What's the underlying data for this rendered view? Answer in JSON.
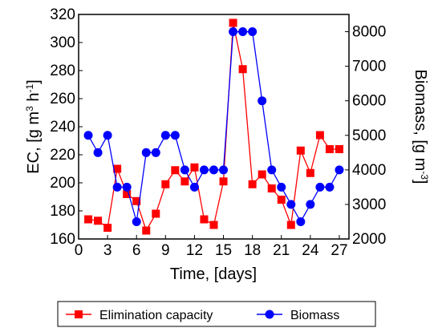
{
  "chart_data": {
    "type": "line",
    "title": "",
    "xlabel": "Time, [days]",
    "ylabel_left": {
      "main": "EC, [g m",
      "sup1": "3",
      "mid": " h",
      "sup2": "-1",
      "end": "]"
    },
    "ylabel_right": {
      "main": "Biomass, [g m",
      "sup1": "-3",
      "end": "]"
    },
    "xlim": [
      0,
      28
    ],
    "xticks": [
      0,
      3,
      6,
      9,
      12,
      15,
      18,
      21,
      24,
      27
    ],
    "ylim_left": [
      160,
      320
    ],
    "yticks_left": [
      160,
      180,
      200,
      220,
      240,
      260,
      280,
      300,
      320
    ],
    "ylim_right": [
      2000,
      8500
    ],
    "yticks_right": [
      2000,
      3000,
      4000,
      5000,
      6000,
      7000,
      8000
    ],
    "grid": false,
    "legend_position": "bottom",
    "series": [
      {
        "name": "Elimination capacity",
        "axis": "left",
        "marker": "square",
        "color": "#ff0000",
        "x": [
          1,
          2,
          3,
          4,
          5,
          6,
          7,
          8,
          9,
          10,
          11,
          12,
          13,
          14,
          15,
          16,
          17,
          18,
          19,
          20,
          21,
          22,
          23,
          24,
          25,
          26,
          27
        ],
        "y": [
          174,
          173,
          168,
          210,
          192,
          187,
          166,
          178,
          199,
          209,
          201,
          211,
          174,
          170,
          201,
          314,
          281,
          199,
          206,
          196,
          188,
          170,
          223,
          207,
          234,
          224,
          224
        ]
      },
      {
        "name": "Biomass",
        "axis": "right",
        "marker": "circle",
        "color": "#0000ff",
        "x": [
          1,
          2,
          3,
          4,
          5,
          6,
          7,
          8,
          9,
          10,
          11,
          12,
          13,
          14,
          15,
          16,
          17,
          18,
          19,
          20,
          21,
          22,
          23,
          24,
          25,
          26,
          27
        ],
        "y": [
          5000,
          4500,
          5000,
          3500,
          3500,
          2500,
          4500,
          4500,
          5000,
          5000,
          4000,
          3500,
          4000,
          4000,
          4000,
          8000,
          8000,
          8000,
          6000,
          4000,
          3500,
          3000,
          2500,
          3000,
          3500,
          3500,
          4000
        ]
      }
    ]
  }
}
